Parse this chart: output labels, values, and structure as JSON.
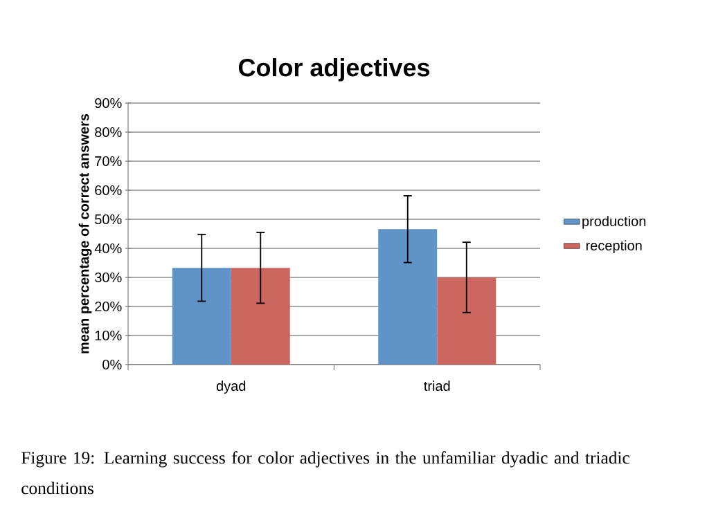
{
  "chart_data": {
    "type": "bar",
    "title": "Color adjectives",
    "ylabel": "mean percentage of correct answers",
    "categories": [
      "dyad",
      "triad"
    ],
    "series": [
      {
        "name": "production",
        "color": "#6094c9",
        "values": [
          33.3,
          46.6
        ],
        "errors": [
          11.5,
          11.5
        ]
      },
      {
        "name": "reception",
        "color": "#cc6660",
        "values": [
          33.3,
          30.0
        ],
        "errors": [
          12.2,
          12.1
        ]
      }
    ],
    "ylim": [
      0,
      90
    ],
    "yticks": [
      {
        "value": 0,
        "label": "0%"
      },
      {
        "value": 10,
        "label": "10%"
      },
      {
        "value": 20,
        "label": "20%"
      },
      {
        "value": 30,
        "label": "30%"
      },
      {
        "value": 40,
        "label": "40%"
      },
      {
        "value": 50,
        "label": "50%"
      },
      {
        "value": 60,
        "label": "60%"
      },
      {
        "value": 70,
        "label": "70%"
      },
      {
        "value": 80,
        "label": "80%"
      },
      {
        "value": 90,
        "label": "90%"
      }
    ],
    "grid": "y",
    "legend": "right",
    "annotations": [
      "Figure 19: Learning success for color adjectives in the unfamiliar dyadic and triadic conditions"
    ]
  }
}
